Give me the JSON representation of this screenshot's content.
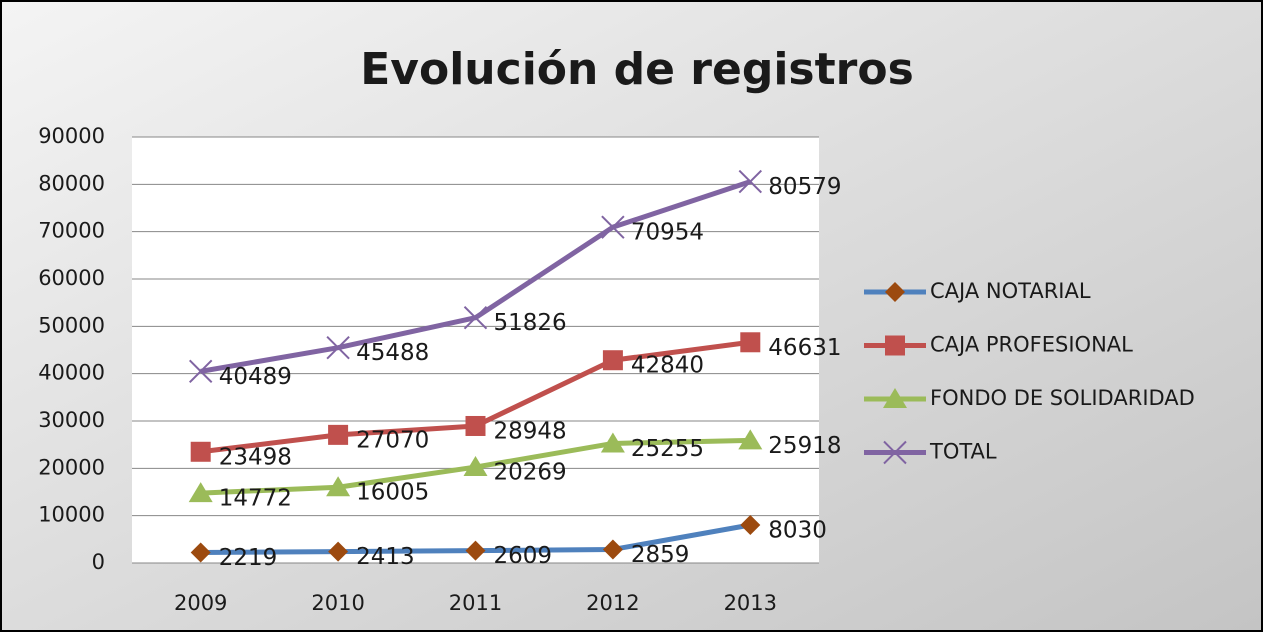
{
  "chart_data": {
    "type": "line",
    "title": "Evolución de registros",
    "categories": [
      "2009",
      "2010",
      "2011",
      "2012",
      "2013"
    ],
    "series": [
      {
        "name": "CAJA NOTARIAL",
        "color": "#4f81bd",
        "marker": "diamond",
        "marker_color": "#9c4a0f",
        "values": [
          2219,
          2413,
          2609,
          2859,
          8030
        ]
      },
      {
        "name": "CAJA PROFESIONAL",
        "color": "#c0504d",
        "marker": "square",
        "marker_color": "#c0504d",
        "values": [
          23498,
          27070,
          28948,
          42840,
          46631
        ]
      },
      {
        "name": "FONDO DE SOLIDARIDAD",
        "color": "#9bbb59",
        "marker": "triangle",
        "marker_color": "#9bbb59",
        "values": [
          14772,
          16005,
          20269,
          25255,
          25918
        ]
      },
      {
        "name": "TOTAL",
        "color": "#8064a2",
        "marker": "x",
        "marker_color": "#8064a2",
        "values": [
          40489,
          45488,
          51826,
          70954,
          80579
        ]
      }
    ],
    "ylim": [
      0,
      90000
    ],
    "yticks": [
      0,
      10000,
      20000,
      30000,
      40000,
      50000,
      60000,
      70000,
      80000,
      90000
    ],
    "grid": true,
    "legend": "right",
    "data_labels": true
  }
}
